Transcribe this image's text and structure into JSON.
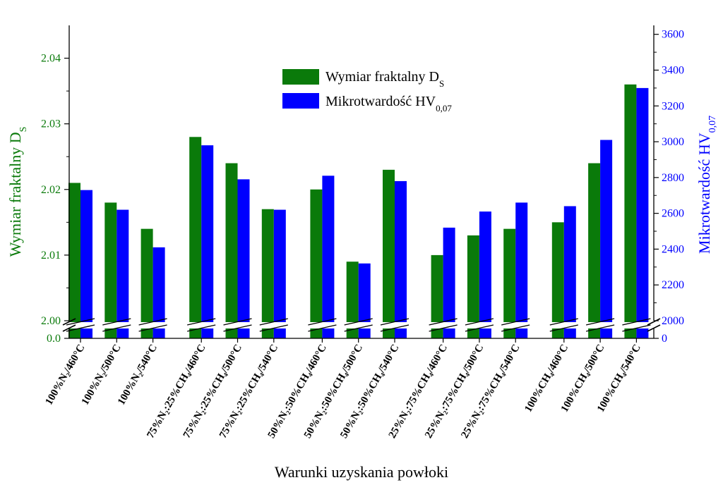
{
  "chart_data": {
    "type": "bar",
    "categories": [
      "100%N₂/460°C",
      "100%N₂/500°C",
      "100%N₂/540°C",
      "75%N₂:25%CH₄/460°C",
      "75%N₂:25%CH₄/500°C",
      "75%N₂:25%CH₄/540°C",
      "50%N₂:50%CH₄/460°C",
      "50%N₂:50%CH₄/500°C",
      "50%N₂:50%CH₄/540°C",
      "25%N₂:75%CH₄/460°C",
      "25%N₂:75%CH₄/500°C",
      "25%N₂:75%CH₄/540°C",
      "100%CH₄/460°C",
      "100%CH₄/500°C",
      "100%CH₄/540°C"
    ],
    "series": [
      {
        "name": "Wymiar fraktalny D",
        "name_sub": "S",
        "axis": "left",
        "color": "#0a7a0a",
        "values": [
          2.021,
          2.018,
          2.014,
          2.028,
          2.024,
          2.017,
          2.02,
          2.009,
          2.023,
          2.01,
          2.013,
          2.014,
          2.015,
          2.024,
          2.036
        ]
      },
      {
        "name": "Mikrotwardość HV",
        "name_sub": "0,07",
        "axis": "right",
        "color": "#0000ff",
        "values": [
          2730,
          2620,
          2410,
          2980,
          2790,
          2620,
          2810,
          2320,
          2780,
          2520,
          2610,
          2660,
          2640,
          3010,
          3300
        ]
      }
    ],
    "xlabel": "Warunki uzyskania powłoki",
    "ylabel_left": "Wymiar fraktalny D",
    "ylabel_left_sub": "S",
    "ylabel_right": "Mikrotwardość HV",
    "ylabel_right_sub": "0,07",
    "ylim_left": [
      2.0,
      2.045
    ],
    "ylim_right": [
      2000,
      3650
    ],
    "yticks_left": [
      "2.00",
      "2.01",
      "2.02",
      "2.03",
      "2.04"
    ],
    "yticks_left_values": [
      2.0,
      2.01,
      2.02,
      2.03,
      2.04
    ],
    "ytick_left_zero": "0.0",
    "yticks_right": [
      "2000",
      "2200",
      "2400",
      "2600",
      "2800",
      "3000",
      "3200",
      "3400",
      "3600"
    ],
    "yticks_right_values": [
      2000,
      2200,
      2400,
      2600,
      2800,
      3000,
      3200,
      3400,
      3600
    ],
    "ytick_right_zero": "0",
    "axis_break": true,
    "group_size": 3,
    "legend_position": "top-center",
    "grid": false
  }
}
